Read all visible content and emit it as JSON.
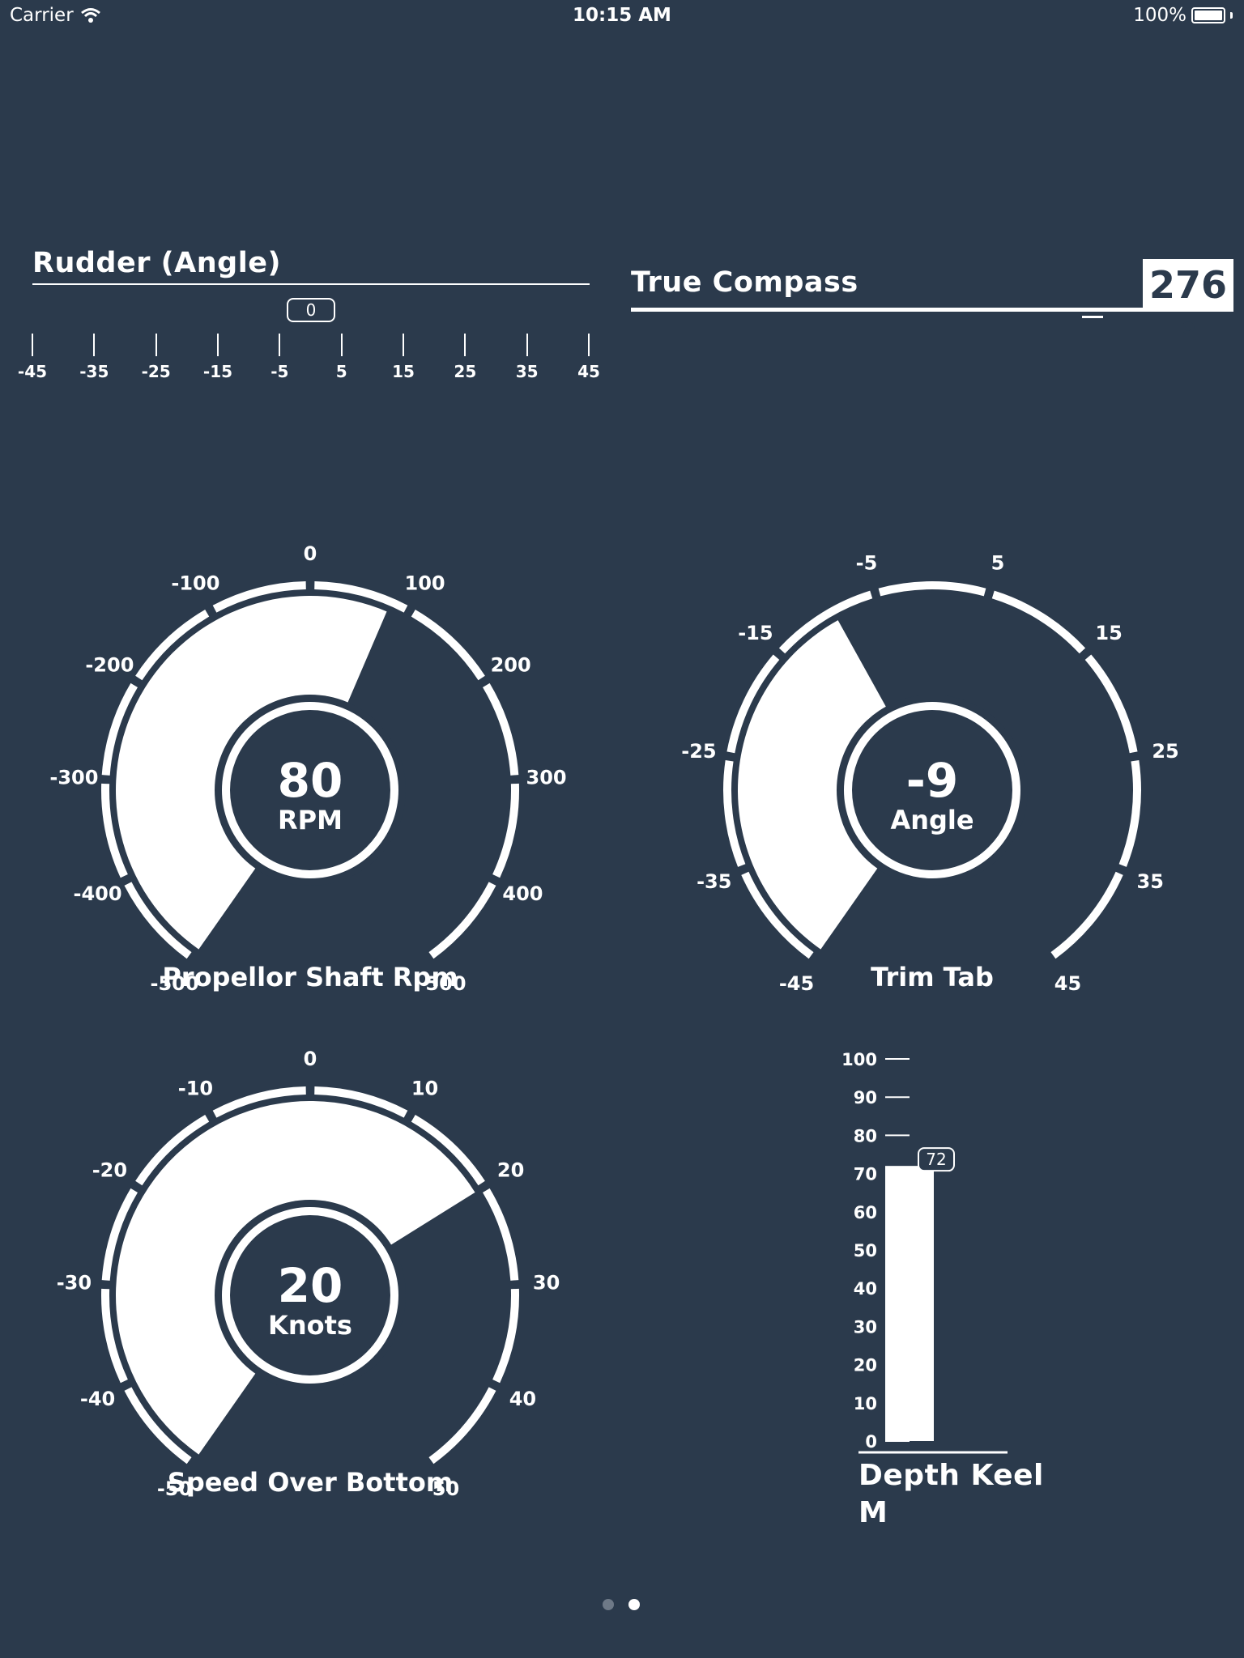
{
  "status_bar": {
    "carrier": "Carrier",
    "time": "10:15 AM",
    "battery": "100%"
  },
  "rudder": {
    "title": "Rudder (Angle)",
    "value": "0",
    "ticks": [
      "-45",
      "-35",
      "-25",
      "-15",
      "-5",
      "5",
      "15",
      "25",
      "35",
      "45"
    ]
  },
  "compass": {
    "title": "True Compass",
    "value": "276 °"
  },
  "propellor_rpm": {
    "caption": "Propellor Shaft Rpm",
    "value": "80",
    "unit": "RPM",
    "min": -500,
    "max": 500,
    "reading": 80,
    "labels": [
      "-500",
      "-400",
      "-300",
      "-200",
      "-100",
      "0",
      "100",
      "200",
      "300",
      "400",
      "500"
    ]
  },
  "trim_tab": {
    "caption": "Trim Tab",
    "value": "-9",
    "unit": "Angle",
    "min": -45,
    "max": 45,
    "reading": -9,
    "labels": [
      "-45",
      "-35",
      "-25",
      "-15",
      "-5",
      "5",
      "15",
      "25",
      "35",
      "45"
    ]
  },
  "speed_over_bottom": {
    "caption": "Speed Over Bottom",
    "value": "20",
    "unit": "Knots",
    "min": -50,
    "max": 50,
    "reading": 20,
    "labels": [
      "-50",
      "-40",
      "-30",
      "-20",
      "-10",
      "0",
      "10",
      "20",
      "30",
      "40",
      "50"
    ]
  },
  "depth_keel": {
    "title_line1": "Depth Keel",
    "title_line2": "M",
    "value": "72",
    "reading": 72,
    "labels": [
      "100",
      "90",
      "80",
      "70",
      "60",
      "50",
      "40",
      "30",
      "20",
      "10",
      "0"
    ]
  },
  "page_control": {
    "pages": 2,
    "current": 2
  },
  "colors": {
    "background": "#2b3a4c",
    "foreground": "#ffffff"
  }
}
